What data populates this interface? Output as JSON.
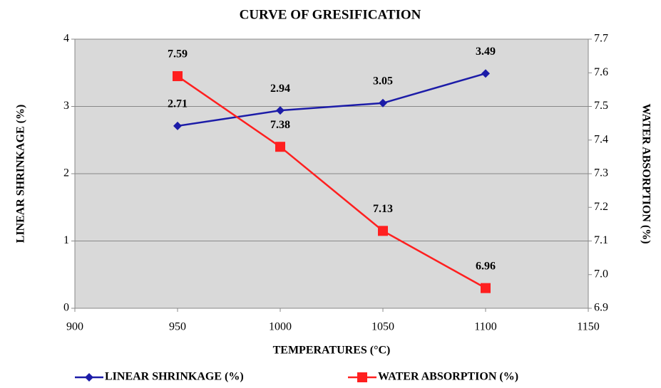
{
  "chart_data": {
    "type": "line",
    "title": "CURVE OF GRESIFICATION",
    "xlabel": "TEMPERATURES (°C)",
    "ylabel": "LINEAR SHRINKAGE (%)",
    "y2label": "WATER ABSORPTION (%)",
    "x": [
      950,
      1000,
      1050,
      1100
    ],
    "series": [
      {
        "name": "LINEAR SHRINKAGE (%)",
        "color": "#1c1ca8",
        "marker": "diamond",
        "values": [
          2.71,
          2.94,
          3.05,
          3.49
        ]
      },
      {
        "name": "WATER ABSORPTION (%)",
        "color": "#ff1f1f",
        "marker": "square",
        "axis": "y2",
        "values": [
          7.59,
          7.38,
          7.13,
          6.96
        ]
      }
    ],
    "xlim": [
      900,
      1150
    ],
    "xticks": [
      900,
      950,
      1000,
      1050,
      1100,
      1150
    ],
    "ylim": [
      0,
      4
    ],
    "yticks": [
      0,
      1,
      2,
      3,
      4
    ],
    "y2lim": [
      6.9,
      7.7
    ],
    "y2ticks": [
      6.9,
      {
        "value": 7,
        "label": "7.0"
      },
      7.1,
      7.2,
      7.3,
      7.4,
      7.5,
      7.6,
      7.7
    ],
    "grid": true,
    "legend": "bottom"
  }
}
